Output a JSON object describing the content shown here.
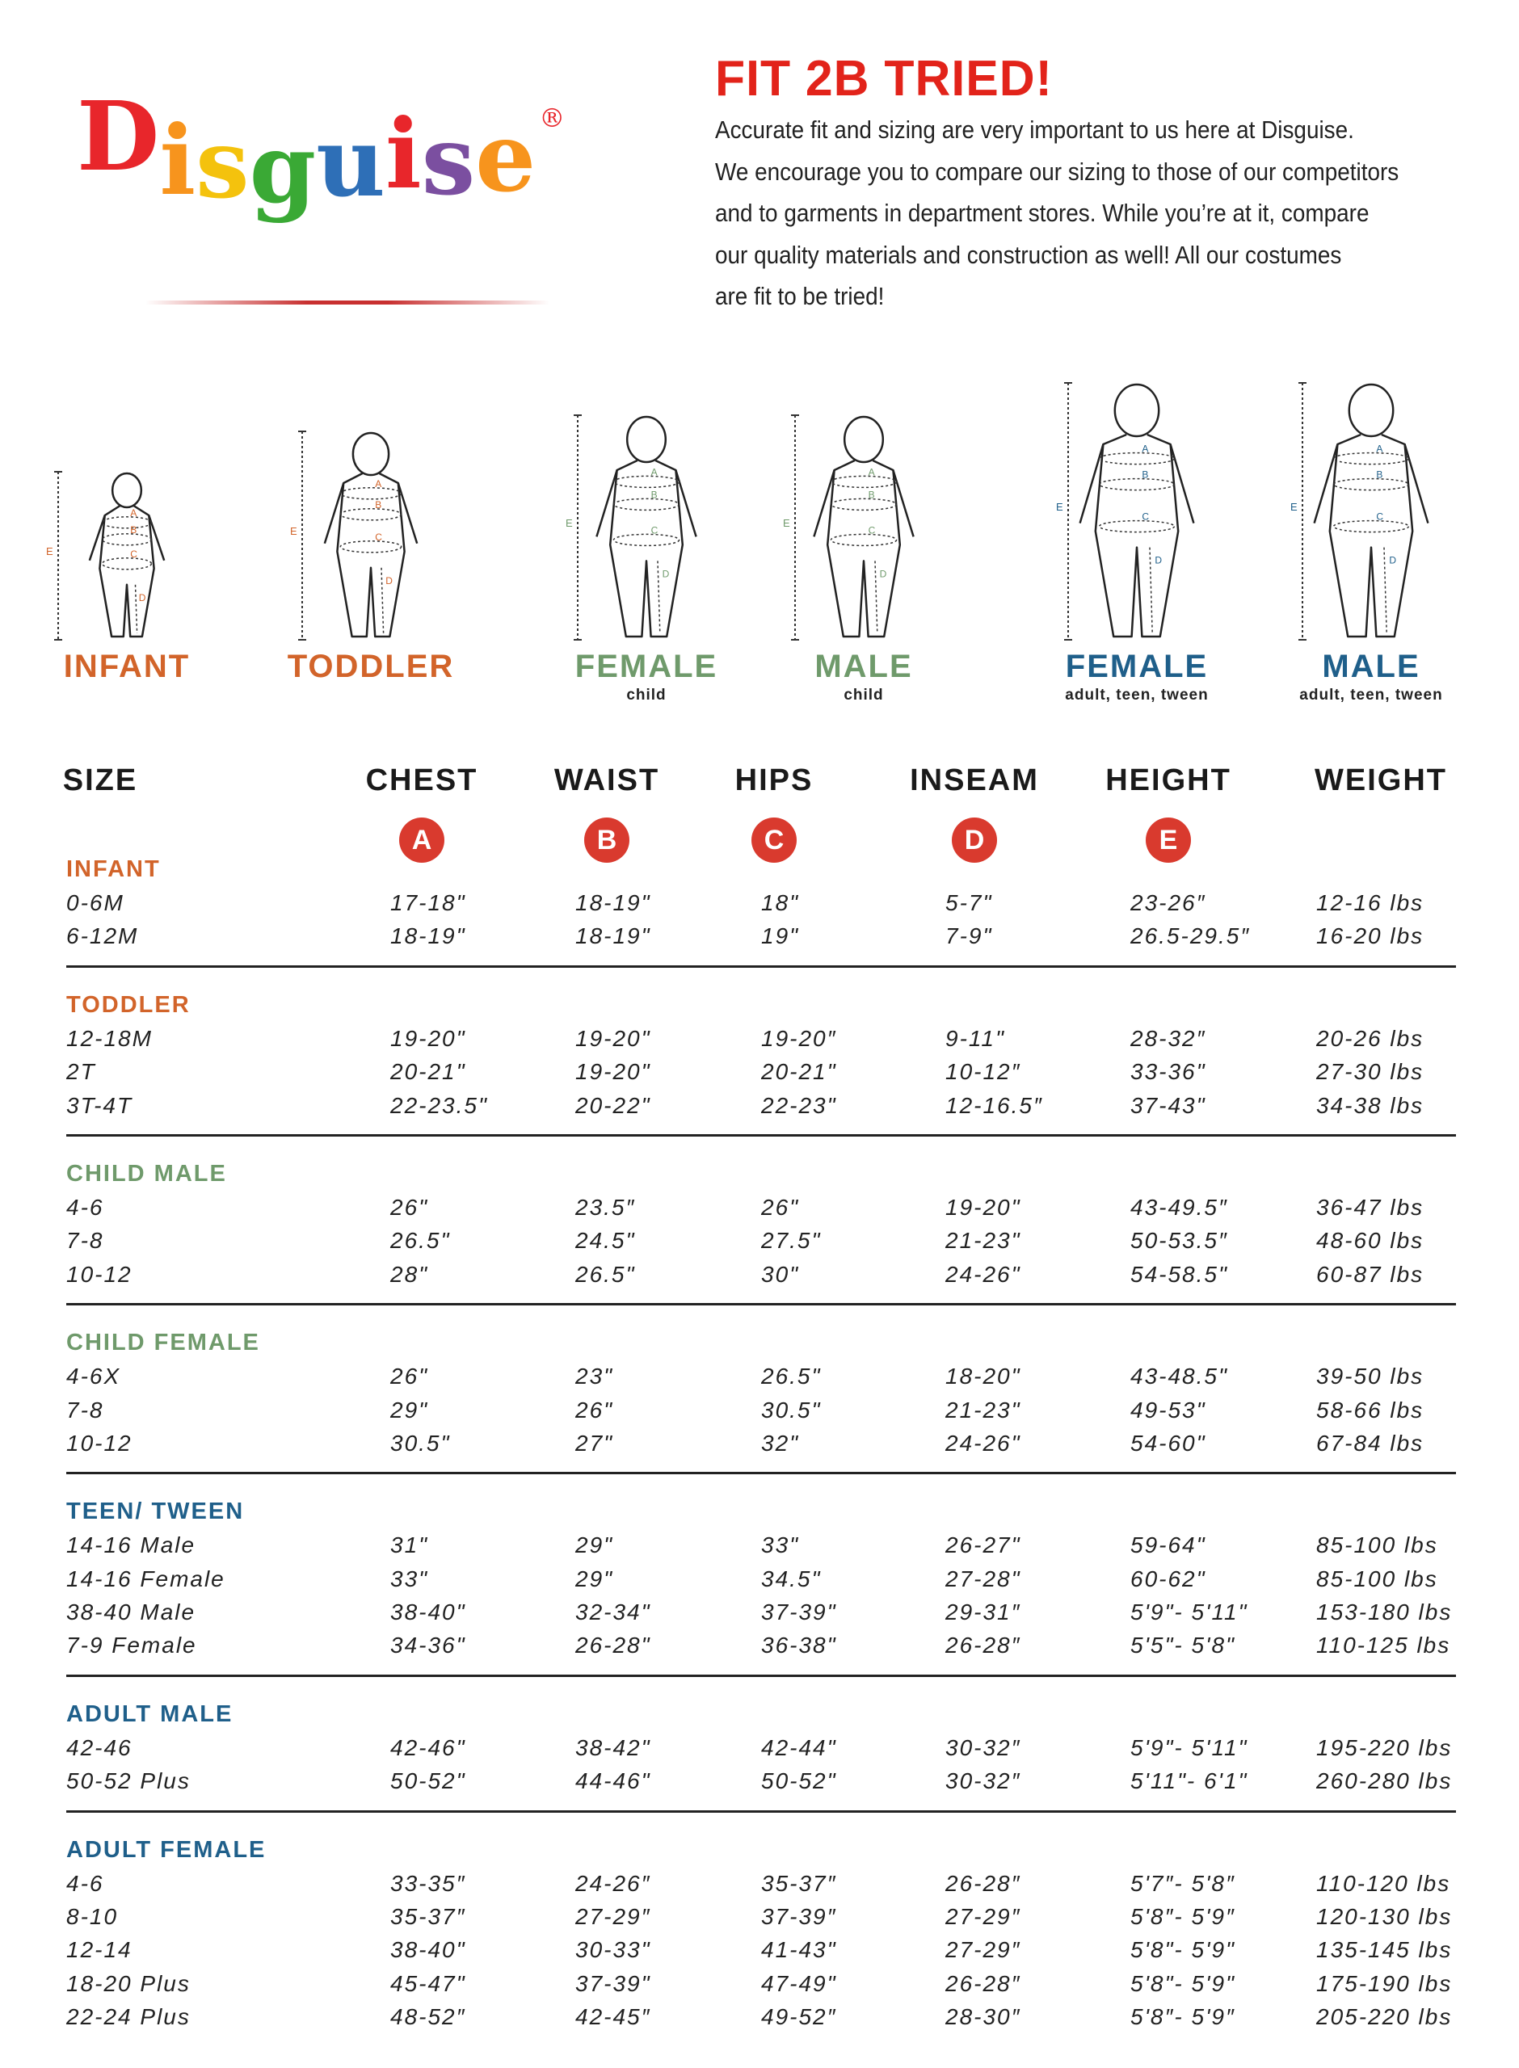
{
  "brand": {
    "name": "Disguise",
    "registered": "®",
    "letter_colors": [
      "#e8262b",
      "#f7941d",
      "#f4c20d",
      "#3aa935",
      "#2e6fb7",
      "#e8262b",
      "#7b4fa0",
      "#f7941d"
    ]
  },
  "header": {
    "title": "FIT 2B TRIED!",
    "title_color": "#e2231a",
    "intro_lines": [
      "Accurate fit and sizing are very important to us here at Disguise.",
      "We encourage you to compare our sizing to those of our competitors",
      "and to garments in department stores. While you’re at it, compare",
      "our quality materials and construction as well! All our costumes",
      "are fit to be tried!"
    ]
  },
  "figures": [
    {
      "label": "INFANT",
      "sub": "",
      "color": "#d2642a"
    },
    {
      "label": "TODDLER",
      "sub": "",
      "color": "#d2642a"
    },
    {
      "label": "FEMALE",
      "sub": "child",
      "color": "#6f9a6b"
    },
    {
      "label": "MALE",
      "sub": "child",
      "color": "#6f9a6b"
    },
    {
      "label": "FEMALE",
      "sub": "adult, teen, tween",
      "color": "#1f5f8a"
    },
    {
      "label": "MALE",
      "sub": "adult, teen, tween",
      "color": "#1f5f8a"
    }
  ],
  "columns": [
    {
      "label": "SIZE",
      "letter": ""
    },
    {
      "label": "CHEST",
      "letter": "A"
    },
    {
      "label": "WAIST",
      "letter": "B"
    },
    {
      "label": "HIPS",
      "letter": "C"
    },
    {
      "label": "INSEAM",
      "letter": "D"
    },
    {
      "label": "HEIGHT",
      "letter": "E"
    },
    {
      "label": "WEIGHT",
      "letter": ""
    }
  ],
  "sections": [
    {
      "title": "INFANT",
      "color": "#d2642a",
      "rows": [
        [
          "0-6M",
          "17-18\"",
          "18-19\"",
          "18\"",
          "5-7\"",
          "23-26″",
          "12-16 lbs"
        ],
        [
          "6-12M",
          "18-19\"",
          "18-19\"",
          "19\"",
          "7-9\"",
          "26.5-29.5″",
          "16-20 lbs"
        ]
      ]
    },
    {
      "title": "TODDLER",
      "color": "#d2642a",
      "rows": [
        [
          "12-18M",
          "19-20\"",
          "19-20\"",
          "19-20″",
          "9-11\"",
          "28-32″",
          "20-26 lbs"
        ],
        [
          "2T",
          "20-21\"",
          "19-20\"",
          "20-21\"",
          "10-12″",
          "33-36\"",
          "27-30 lbs"
        ],
        [
          "3T-4T",
          "22-23.5\"",
          "20-22\"",
          "22-23\"",
          "12-16.5″",
          "37-43\"",
          "34-38 lbs"
        ]
      ]
    },
    {
      "title": "CHILD MALE",
      "color": "#6f9a6b",
      "rows": [
        [
          "4-6",
          "26\"",
          "23.5″",
          "26\"",
          "19-20\"",
          "43-49.5″",
          "36-47 lbs"
        ],
        [
          "7-8",
          "26.5\"",
          "24.5\"",
          "27.5\"",
          "21-23\"",
          "50-53.5″",
          "48-60 lbs"
        ],
        [
          "10-12",
          "28\"",
          "26.5\"",
          "30\"",
          "24-26\"",
          "54-58.5\"",
          "60-87 lbs"
        ]
      ]
    },
    {
      "title": "CHILD FEMALE",
      "color": "#6f9a6b",
      "rows": [
        [
          "4-6X",
          "26\"",
          "23\"",
          "26.5\"",
          "18-20\"",
          "43-48.5\"",
          "39-50 lbs"
        ],
        [
          "7-8",
          "29\"",
          "26\"",
          "30.5\"",
          "21-23\"",
          "49-53\"",
          "58-66 lbs"
        ],
        [
          "10-12",
          "30.5\"",
          "27\"",
          "32\"",
          "24-26\"",
          "54-60\"",
          "67-84 lbs"
        ]
      ]
    },
    {
      "title": "TEEN/ TWEEN",
      "color": "#1f5f8a",
      "rows": [
        [
          "14-16 Male",
          "31\"",
          "29\"",
          "33\"",
          "26-27\"",
          "59-64\"",
          "85-100 lbs"
        ],
        [
          "14-16 Female",
          "33\"",
          "29\"",
          "34.5\"",
          "27-28\"",
          "60-62\"",
          "85-100 lbs"
        ],
        [
          "38-40 Male",
          "38-40\"",
          "32-34\"",
          "37-39\"",
          "29-31″",
          "5'9\"- 5'11\"",
          "153-180 lbs"
        ],
        [
          "7-9 Female",
          "34-36\"",
          "26-28\"",
          "36-38\"",
          "26-28″",
          "5'5\"- 5'8\"",
          "110-125 lbs"
        ]
      ]
    },
    {
      "title": "ADULT MALE",
      "color": "#1f5f8a",
      "rows": [
        [
          "42-46",
          "42-46\"",
          "38-42\"",
          "42-44\"",
          "30-32″",
          "5'9\"- 5'11\"",
          "195-220 lbs"
        ],
        [
          "50-52 Plus",
          "50-52\"",
          "44-46\"",
          "50-52\"",
          "30-32″",
          "5'11\"- 6'1\"",
          "260-280 lbs"
        ]
      ]
    },
    {
      "title": "ADULT FEMALE",
      "color": "#1f5f8a",
      "rows": [
        [
          "4-6",
          "33-35″",
          "24-26″",
          "35-37″",
          "26-28″",
          "5'7″- 5'8″",
          "110-120 lbs"
        ],
        [
          "8-10",
          "35-37″",
          "27-29″",
          "37-39″",
          "27-29″",
          "5'8″- 5'9″",
          "120-130 lbs"
        ],
        [
          "12-14",
          "38-40\"",
          "30-33\"",
          "41-43\"",
          "27-29″",
          "5'8\"- 5'9\"",
          "135-145 lbs"
        ],
        [
          "18-20 Plus",
          "45-47\"",
          "37-39\"",
          "47-49\"",
          "26-28″",
          "5'8\"- 5'9\"",
          "175-190 lbs"
        ],
        [
          "22-24 Plus",
          "48-52″",
          "42-45″",
          "49-52″",
          "28-30″",
          "5'8″- 5'9″",
          "205-220 lbs"
        ]
      ]
    }
  ]
}
